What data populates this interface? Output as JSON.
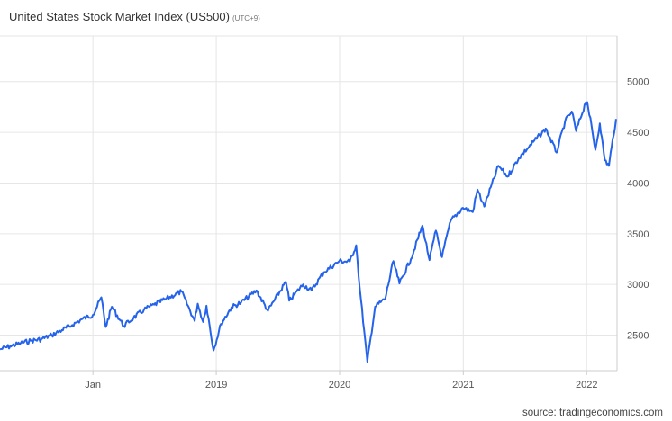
{
  "title": "United States Stock Market Index (US500)",
  "timezone": "(UTC+9)",
  "source": "source: tradingeconomics.com",
  "colors": {
    "line": "#2563eb",
    "grid": "#e6e6e6",
    "axis": "#cccccc"
  },
  "chart_data": {
    "type": "line",
    "title": "United States Stock Market Index (US500)",
    "xlabel": "",
    "ylabel": "",
    "ylim": [
      2150,
      5450
    ],
    "xlim": [
      "2017-04-01",
      "2022-04-01"
    ],
    "yticks": [
      2500,
      3000,
      3500,
      4000,
      4500,
      5000
    ],
    "xticks": [
      {
        "label": "Jan",
        "date": "2018-01-01"
      },
      {
        "label": "2019",
        "date": "2019-01-01"
      },
      {
        "label": "2020",
        "date": "2020-01-01"
      },
      {
        "label": "2021",
        "date": "2021-01-01"
      },
      {
        "label": "2022",
        "date": "2022-01-01"
      }
    ],
    "grid": true,
    "legend": "none",
    "series": [
      {
        "color": "#2563eb",
        "points": [
          [
            "2017-04-01",
            2360
          ],
          [
            "2017-05-01",
            2390
          ],
          [
            "2017-06-01",
            2420
          ],
          [
            "2017-07-01",
            2445
          ],
          [
            "2017-08-01",
            2460
          ],
          [
            "2017-09-01",
            2500
          ],
          [
            "2017-10-01",
            2550
          ],
          [
            "2017-11-01",
            2600
          ],
          [
            "2017-12-01",
            2660
          ],
          [
            "2018-01-01",
            2700
          ],
          [
            "2018-01-26",
            2872
          ],
          [
            "2018-02-08",
            2580
          ],
          [
            "2018-02-26",
            2780
          ],
          [
            "2018-04-02",
            2590
          ],
          [
            "2018-05-01",
            2670
          ],
          [
            "2018-06-01",
            2750
          ],
          [
            "2018-07-01",
            2800
          ],
          [
            "2018-08-01",
            2850
          ],
          [
            "2018-09-20",
            2930
          ],
          [
            "2018-10-29",
            2640
          ],
          [
            "2018-11-07",
            2810
          ],
          [
            "2018-11-23",
            2630
          ],
          [
            "2018-12-03",
            2790
          ],
          [
            "2018-12-24",
            2350
          ],
          [
            "2019-01-15",
            2610
          ],
          [
            "2019-02-15",
            2775
          ],
          [
            "2019-03-15",
            2820
          ],
          [
            "2019-04-30",
            2940
          ],
          [
            "2019-06-03",
            2740
          ],
          [
            "2019-07-26",
            3025
          ],
          [
            "2019-08-05",
            2840
          ],
          [
            "2019-09-15",
            3000
          ],
          [
            "2019-10-10",
            2940
          ],
          [
            "2019-11-15",
            3120
          ],
          [
            "2019-12-31",
            3230
          ],
          [
            "2020-01-31",
            3225
          ],
          [
            "2020-02-19",
            3386
          ],
          [
            "2020-03-01",
            2950
          ],
          [
            "2020-03-23",
            2237
          ],
          [
            "2020-04-15",
            2780
          ],
          [
            "2020-05-15",
            2860
          ],
          [
            "2020-06-08",
            3230
          ],
          [
            "2020-06-26",
            3010
          ],
          [
            "2020-07-30",
            3250
          ],
          [
            "2020-09-02",
            3580
          ],
          [
            "2020-09-23",
            3240
          ],
          [
            "2020-10-12",
            3530
          ],
          [
            "2020-10-30",
            3270
          ],
          [
            "2020-11-25",
            3630
          ],
          [
            "2020-12-31",
            3756
          ],
          [
            "2021-01-29",
            3714
          ],
          [
            "2021-02-12",
            3934
          ],
          [
            "2021-03-04",
            3768
          ],
          [
            "2021-04-15",
            4170
          ],
          [
            "2021-05-12",
            4063
          ],
          [
            "2021-06-15",
            4250
          ],
          [
            "2021-07-15",
            4360
          ],
          [
            "2021-08-15",
            4470
          ],
          [
            "2021-09-02",
            4537
          ],
          [
            "2021-10-04",
            4300
          ],
          [
            "2021-10-29",
            4605
          ],
          [
            "2021-11-18",
            4705
          ],
          [
            "2021-12-01",
            4513
          ],
          [
            "2021-12-29",
            4793
          ],
          [
            "2022-01-03",
            4797
          ],
          [
            "2022-01-27",
            4327
          ],
          [
            "2022-02-09",
            4587
          ],
          [
            "2022-02-24",
            4225
          ],
          [
            "2022-03-08",
            4170
          ],
          [
            "2022-03-16",
            4357
          ],
          [
            "2022-03-29",
            4632
          ]
        ]
      }
    ]
  }
}
